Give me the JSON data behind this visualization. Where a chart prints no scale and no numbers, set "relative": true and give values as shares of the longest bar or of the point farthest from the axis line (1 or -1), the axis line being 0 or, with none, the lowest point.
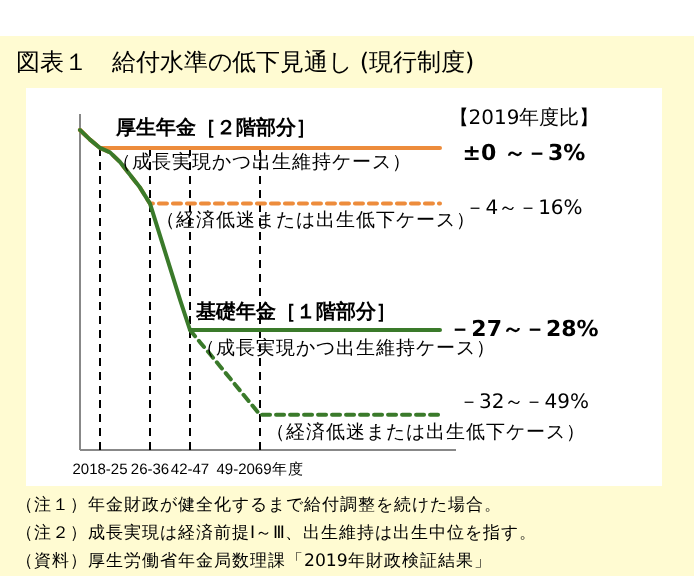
{
  "chart_data": {
    "type": "line",
    "relative": true,
    "title": "図表１　給付水準の低下見通し (現行制度)",
    "categories": [
      null,
      null,
      "2018-25",
      null,
      null,
      null,
      null,
      "26-36",
      null,
      null,
      null,
      "42-47",
      null,
      null,
      null,
      null,
      null,
      null,
      "49-2069年度",
      null,
      null,
      null,
      null,
      null,
      null,
      null,
      null,
      null,
      null,
      null,
      null,
      null,
      null,
      null,
      null,
      null,
      null
    ],
    "series": [
      {
        "color": "#ed8c3c",
        "line_style": "solid",
        "values": [
          1,
          0.97,
          0.944,
          0.944,
          0.944,
          0.944,
          0.944,
          0.944,
          0.944,
          0.944,
          0.944,
          0.944,
          0.944,
          0.944,
          0.944,
          0.944,
          0.944,
          0.944,
          0.944,
          0.944,
          0.944,
          0.944,
          0.944,
          0.944,
          0.944,
          0.944,
          0.944,
          0.944,
          0.944,
          0.944,
          0.944,
          0.944,
          0.944,
          0.944,
          0.944,
          0.944,
          0.944
        ]
      },
      {
        "color": "#ed8c3c",
        "line_style": "dashed",
        "values": [
          1,
          0.97,
          0.944,
          0.93,
          0.9,
          0.86,
          0.82,
          0.77,
          0.77,
          0.77,
          0.77,
          0.77,
          0.77,
          0.77,
          0.77,
          0.77,
          0.77,
          0.77,
          0.77,
          0.77,
          0.77,
          0.77,
          0.77,
          0.77,
          0.77,
          0.77,
          0.77,
          0.77,
          0.77,
          0.77,
          0.77,
          0.77,
          0.77,
          0.77,
          0.77,
          0.77,
          0.77
        ]
      },
      {
        "color": "#3a7a2a",
        "line_style": "solid",
        "values": [
          1,
          0.97,
          0.944,
          0.93,
          0.9,
          0.86,
          0.82,
          0.77,
          0.67,
          0.57,
          0.47,
          0.375,
          0.375,
          0.375,
          0.375,
          0.375,
          0.375,
          0.375,
          0.375,
          0.375,
          0.375,
          0.375,
          0.375,
          0.375,
          0.375,
          0.375,
          0.375,
          0.375,
          0.375,
          0.375,
          0.375,
          0.375,
          0.375,
          0.375,
          0.375,
          0.375,
          0.375
        ]
      },
      {
        "color": "#3a7a2a",
        "line_style": "dashed",
        "values": [
          null,
          null,
          null,
          null,
          null,
          null,
          null,
          null,
          null,
          null,
          null,
          0.375,
          0.337,
          0.3,
          0.262,
          0.224,
          0.186,
          0.148,
          0.11,
          0.11,
          0.11,
          0.11,
          0.11,
          0.11,
          0.11,
          0.11,
          0.11,
          0.11,
          0.11,
          0.11,
          0.11,
          0.11,
          0.11,
          0.11,
          0.11,
          0.11,
          0.11
        ]
      }
    ],
    "ref_lines": [
      {
        "axis": "x",
        "value": "2018-25",
        "color": "#000000",
        "line_style": "dashed"
      },
      {
        "axis": "x",
        "value": "26-36",
        "color": "#000000",
        "line_style": "dashed"
      },
      {
        "axis": "x",
        "value": "42-47",
        "color": "#000000",
        "line_style": "dashed"
      },
      {
        "axis": "x",
        "value": "49-2069年度",
        "color": "#000000",
        "line_style": "dashed"
      }
    ],
    "annotations": [
      "【2019年度比】",
      "±0 ～－3%",
      "－4～－16%",
      "－27～－28%",
      "－32～－49%",
      "厚生年金［２階部分］",
      "（成長実現かつ出生維持ケース）",
      "（経済低迷または出生低下ケース）",
      "基礎年金［１階部分］",
      "（成長実現かつ出生維持ケース）",
      "（経済低迷または出生低下ケース）",
      "（注１）年金財政が健全化するまで給付調整を続けた場合。",
      "（注２）成長実現は経済前提Ⅰ～Ⅲ、出生維持は出生中位を指す。",
      "（資料）厚生労働省年金局数理課「2019年財政検証結果」"
    ]
  }
}
